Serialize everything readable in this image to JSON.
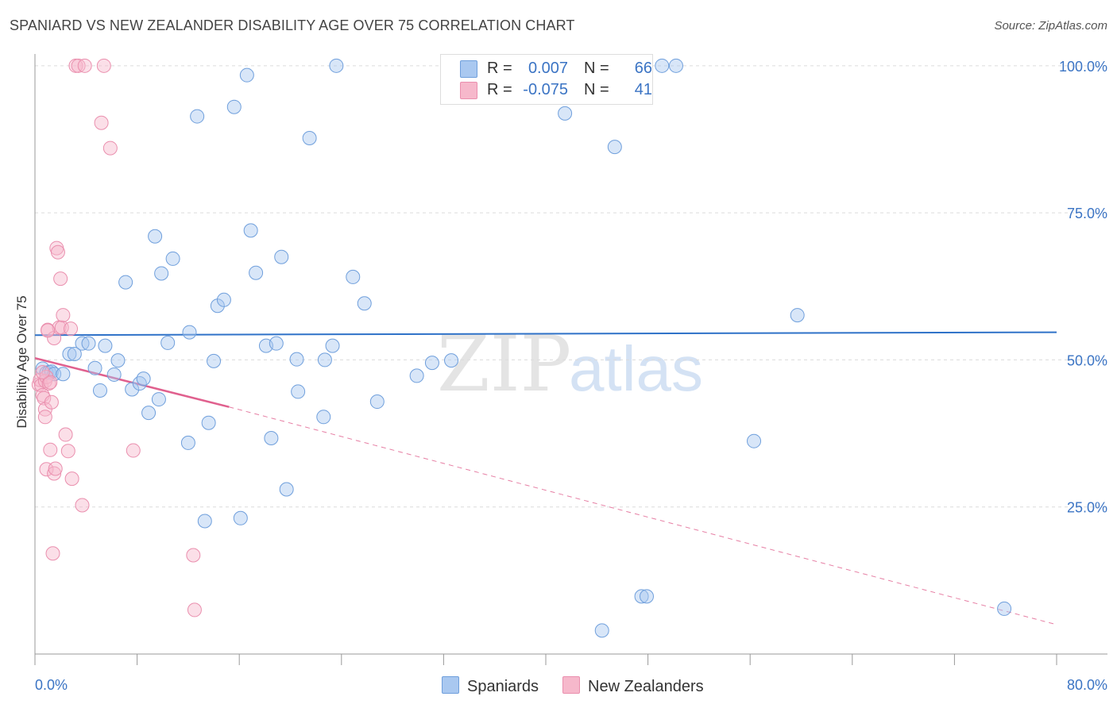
{
  "title": "SPANIARD VS NEW ZEALANDER DISABILITY AGE OVER 75 CORRELATION CHART",
  "source": "Source: ZipAtlas.com",
  "watermark": {
    "part1": "ZIP",
    "part2": "atlas"
  },
  "colors": {
    "blue_fill": "#a9c8f0",
    "blue_stroke": "#6f9fdc",
    "blue_line": "#2f72c8",
    "pink_fill": "#f6b8cb",
    "pink_stroke": "#ea8fae",
    "pink_line": "#e0608e",
    "tick_text": "#3b74c4",
    "grid": "#dcdcdc"
  },
  "legend": {
    "rows": [
      {
        "r_label": "R =",
        "r_value": "0.007",
        "n_label": "N =",
        "n_value": "66"
      },
      {
        "r_label": "R =",
        "r_value": "-0.075",
        "n_label": "N =",
        "n_value": "41"
      }
    ]
  },
  "bottom_legend": {
    "spaniards": "Spaniards",
    "new_zealanders": "New Zealanders"
  },
  "chart_data": {
    "type": "scatter",
    "title": "SPANIARD VS NEW ZEALANDER DISABILITY AGE OVER 75 CORRELATION CHART",
    "xlabel": "",
    "ylabel": "Disability Age Over 75",
    "xlim": [
      0,
      80
    ],
    "ylim": [
      0,
      102
    ],
    "x_tick_labels": [
      "0.0%",
      "80.0%"
    ],
    "y_ticks": [
      25,
      50,
      75,
      100
    ],
    "y_tick_labels": [
      "25.0%",
      "50.0%",
      "75.0%",
      "100.0%"
    ],
    "grid": true,
    "series": [
      {
        "name": "Spaniards",
        "color": "#a9c8f0",
        "trend": {
          "x": [
            0,
            80
          ],
          "y": [
            54.2,
            54.7
          ],
          "style": "solid"
        },
        "points": [
          [
            0.6,
            48.5
          ],
          [
            0.9,
            47.8
          ],
          [
            1.1,
            47.9
          ],
          [
            1.3,
            48.0
          ],
          [
            1.5,
            47.6
          ],
          [
            2.2,
            47.6
          ],
          [
            2.7,
            51.0
          ],
          [
            3.1,
            51.0
          ],
          [
            3.7,
            52.8
          ],
          [
            4.2,
            52.8
          ],
          [
            4.7,
            48.6
          ],
          [
            5.1,
            44.8
          ],
          [
            5.5,
            52.4
          ],
          [
            6.2,
            47.5
          ],
          [
            6.5,
            49.9
          ],
          [
            7.1,
            63.2
          ],
          [
            7.6,
            45.0
          ],
          [
            8.2,
            46.0
          ],
          [
            8.5,
            46.8
          ],
          [
            8.9,
            41.0
          ],
          [
            9.4,
            71.0
          ],
          [
            9.7,
            43.3
          ],
          [
            9.9,
            64.7
          ],
          [
            10.4,
            52.9
          ],
          [
            10.8,
            67.2
          ],
          [
            12.0,
            35.9
          ],
          [
            12.1,
            54.7
          ],
          [
            12.7,
            91.4
          ],
          [
            13.3,
            22.6
          ],
          [
            13.6,
            39.3
          ],
          [
            14.0,
            49.8
          ],
          [
            14.3,
            59.2
          ],
          [
            14.8,
            60.2
          ],
          [
            15.6,
            93.0
          ],
          [
            16.1,
            23.1
          ],
          [
            16.6,
            98.4
          ],
          [
            16.9,
            72.0
          ],
          [
            17.3,
            64.8
          ],
          [
            18.1,
            52.4
          ],
          [
            18.5,
            36.7
          ],
          [
            18.9,
            52.8
          ],
          [
            19.3,
            67.5
          ],
          [
            19.7,
            28.0
          ],
          [
            20.5,
            50.1
          ],
          [
            20.6,
            44.6
          ],
          [
            21.5,
            87.7
          ],
          [
            22.6,
            40.3
          ],
          [
            22.7,
            50.0
          ],
          [
            23.3,
            52.4
          ],
          [
            23.6,
            100.0
          ],
          [
            24.9,
            64.1
          ],
          [
            25.8,
            59.6
          ],
          [
            26.8,
            42.9
          ],
          [
            29.9,
            47.3
          ],
          [
            31.1,
            49.5
          ],
          [
            32.6,
            49.9
          ],
          [
            41.5,
            91.9
          ],
          [
            44.4,
            4.0
          ],
          [
            45.4,
            86.2
          ],
          [
            47.5,
            9.8
          ],
          [
            47.9,
            9.8
          ],
          [
            49.1,
            100.0
          ],
          [
            50.2,
            100.0
          ],
          [
            56.3,
            36.2
          ],
          [
            59.7,
            57.6
          ],
          [
            75.9,
            7.7
          ]
        ]
      },
      {
        "name": "New Zealanders",
        "color": "#f6b8cb",
        "trend": {
          "x": [
            0,
            15.2
          ],
          "y": [
            50.3,
            42.0
          ],
          "style": "solid",
          "extended": {
            "x": [
              15.2,
              80
            ],
            "y": [
              42.0,
              5.0
            ],
            "style": "dashed"
          }
        },
        "points": [
          [
            0.3,
            45.8
          ],
          [
            0.4,
            46.6
          ],
          [
            0.5,
            45.7
          ],
          [
            0.6,
            44.0
          ],
          [
            0.7,
            43.5
          ],
          [
            0.8,
            46.4
          ],
          [
            0.9,
            47.1
          ],
          [
            0.8,
            41.6
          ],
          [
            0.8,
            40.3
          ],
          [
            0.9,
            31.4
          ],
          [
            1.0,
            55.1
          ],
          [
            1.1,
            46.0
          ],
          [
            1.2,
            34.7
          ],
          [
            1.3,
            42.8
          ],
          [
            1.4,
            17.1
          ],
          [
            1.5,
            30.7
          ],
          [
            1.5,
            53.7
          ],
          [
            1.6,
            31.5
          ],
          [
            1.7,
            69.0
          ],
          [
            1.8,
            68.3
          ],
          [
            1.9,
            55.5
          ],
          [
            2.0,
            63.8
          ],
          [
            2.1,
            55.5
          ],
          [
            2.2,
            57.6
          ],
          [
            2.4,
            37.3
          ],
          [
            2.6,
            34.5
          ],
          [
            2.8,
            55.3
          ],
          [
            2.9,
            29.8
          ],
          [
            3.2,
            100.0
          ],
          [
            3.4,
            100.0
          ],
          [
            3.7,
            25.3
          ],
          [
            3.9,
            100.0
          ],
          [
            5.2,
            90.3
          ],
          [
            5.4,
            100.0
          ],
          [
            5.9,
            86.0
          ],
          [
            7.7,
            34.6
          ],
          [
            12.4,
            16.8
          ],
          [
            12.5,
            7.5
          ],
          [
            1.0,
            55.0
          ],
          [
            1.2,
            46.2
          ],
          [
            0.6,
            47.9
          ]
        ]
      }
    ]
  }
}
